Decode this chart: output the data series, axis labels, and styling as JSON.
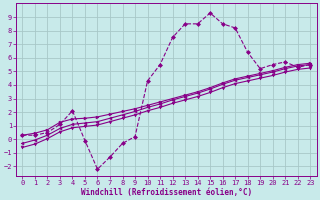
{
  "xlabel": "Windchill (Refroidissement éolien,°C)",
  "bg_color": "#c8eaea",
  "grid_color": "#a8c8c8",
  "line_color": "#880088",
  "xlim": [
    -0.5,
    23.5
  ],
  "ylim": [
    -2.7,
    10.0
  ],
  "xticks": [
    0,
    1,
    2,
    3,
    4,
    5,
    6,
    7,
    8,
    9,
    10,
    11,
    12,
    13,
    14,
    15,
    16,
    17,
    18,
    19,
    20,
    21,
    22,
    23
  ],
  "yticks": [
    -2,
    -1,
    0,
    1,
    2,
    3,
    4,
    5,
    6,
    7,
    8,
    9
  ],
  "curve1_x": [
    0,
    1,
    2,
    3,
    4,
    5,
    6,
    7,
    8,
    9,
    10,
    11,
    12,
    13,
    14,
    15,
    16,
    17,
    18,
    19,
    20,
    21,
    22,
    23
  ],
  "curve1_y": [
    0.3,
    0.3,
    0.5,
    1.1,
    2.1,
    -0.1,
    -2.2,
    -1.3,
    -0.3,
    0.2,
    4.3,
    5.5,
    7.5,
    8.5,
    8.5,
    9.3,
    8.5,
    8.2,
    6.4,
    5.2,
    5.5,
    5.7,
    5.3,
    5.5
  ],
  "curve2_x": [
    0,
    1,
    2,
    3,
    4,
    5,
    6,
    7,
    8,
    9,
    10,
    11,
    12,
    13,
    14,
    15,
    16,
    17,
    18,
    19,
    20,
    21,
    22,
    23
  ],
  "curve2_y": [
    0.3,
    0.45,
    0.7,
    1.25,
    1.5,
    1.55,
    1.65,
    1.85,
    2.05,
    2.25,
    2.5,
    2.75,
    3.0,
    3.25,
    3.5,
    3.8,
    4.15,
    4.45,
    4.65,
    4.85,
    5.05,
    5.3,
    5.5,
    5.6
  ],
  "curve3_x": [
    0,
    1,
    2,
    3,
    4,
    5,
    6,
    7,
    8,
    9,
    10,
    11,
    12,
    13,
    14,
    15,
    16,
    17,
    18,
    19,
    20,
    21,
    22,
    23
  ],
  "curve3_y": [
    -0.3,
    -0.05,
    0.3,
    0.8,
    1.1,
    1.2,
    1.3,
    1.55,
    1.8,
    2.05,
    2.35,
    2.6,
    2.9,
    3.15,
    3.4,
    3.7,
    4.05,
    4.35,
    4.55,
    4.75,
    4.95,
    5.2,
    5.4,
    5.5
  ],
  "curve4_x": [
    0,
    1,
    2,
    3,
    4,
    5,
    6,
    7,
    8,
    9,
    10,
    11,
    12,
    13,
    14,
    15,
    16,
    17,
    18,
    19,
    20,
    21,
    22,
    23
  ],
  "curve4_y": [
    -0.6,
    -0.35,
    0.05,
    0.55,
    0.85,
    0.95,
    1.05,
    1.3,
    1.55,
    1.8,
    2.1,
    2.35,
    2.65,
    2.9,
    3.15,
    3.45,
    3.8,
    4.1,
    4.3,
    4.5,
    4.7,
    4.95,
    5.15,
    5.25
  ]
}
